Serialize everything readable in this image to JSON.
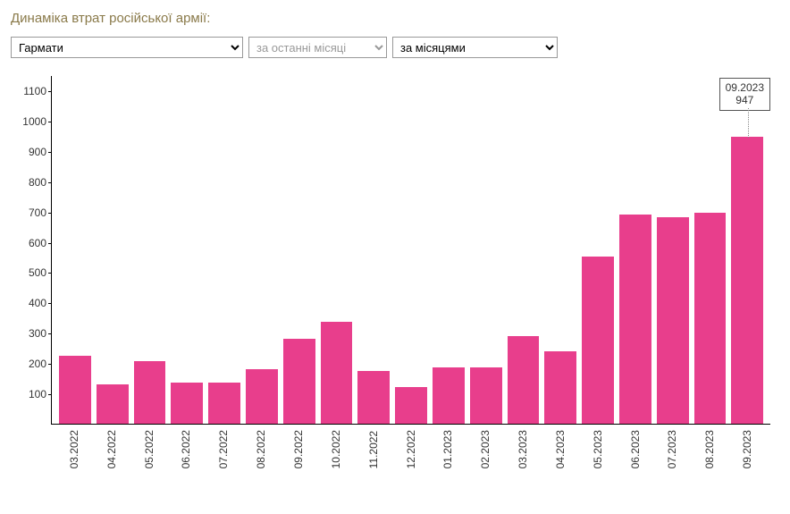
{
  "title": "Динаміка втрат російської армії:",
  "selects": {
    "category": {
      "value": "Гармати"
    },
    "period": {
      "value": "за останні місяці"
    },
    "grouping": {
      "value": "за місяцями"
    }
  },
  "chart": {
    "type": "bar",
    "ylim": [
      0,
      1150
    ],
    "yticks": [
      100,
      200,
      300,
      400,
      500,
      600,
      700,
      800,
      900,
      1000,
      1100
    ],
    "bar_color": "#e83e8c",
    "background_color": "#ffffff",
    "axis_color": "#000000",
    "label_fontsize": 12,
    "categories": [
      "03.2022",
      "04.2022",
      "05.2022",
      "06.2022",
      "07.2022",
      "08.2022",
      "09.2022",
      "10.2022",
      "11.2022",
      "12.2022",
      "01.2023",
      "02.2023",
      "03.2023",
      "04.2023",
      "05.2023",
      "06.2023",
      "07.2023",
      "08.2023",
      "09.2023"
    ],
    "values": [
      225,
      130,
      205,
      135,
      135,
      180,
      280,
      335,
      175,
      120,
      185,
      185,
      290,
      240,
      550,
      690,
      680,
      695,
      947
    ],
    "tooltip": {
      "index": 18,
      "label": "09.2023",
      "value": "947"
    }
  }
}
